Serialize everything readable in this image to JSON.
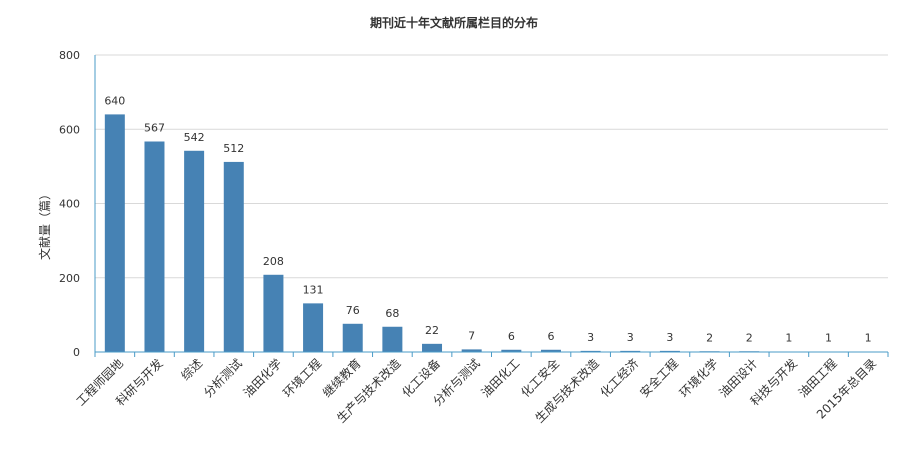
{
  "chart_data": {
    "type": "bar",
    "title": "期刊近十年文献所属栏目的分布",
    "xlabel": "",
    "ylabel": "文献量（篇）",
    "ylim": [
      0,
      800
    ],
    "yticks": [
      0,
      200,
      400,
      600,
      800
    ],
    "grid": true,
    "categories": [
      "工程师园地",
      "科研与开发",
      "综述",
      "分析测试",
      "油田化学",
      "环境工程",
      "继续教育",
      "生产与技术改造",
      "化工设备",
      "分析与测试",
      "油田化工",
      "化工安全",
      "生成与技术改造",
      "化工经济",
      "安全工程",
      "环境化学",
      "油田设计",
      "科技与开发",
      "油田工程",
      "2015年总目录"
    ],
    "values": [
      640,
      567,
      542,
      512,
      208,
      131,
      76,
      68,
      22,
      7,
      6,
      6,
      3,
      3,
      3,
      2,
      2,
      1,
      1,
      1
    ],
    "bar_color": "#4682b4",
    "axis_color": "#4a9bc7",
    "grid_color": "#d9d9d9"
  }
}
